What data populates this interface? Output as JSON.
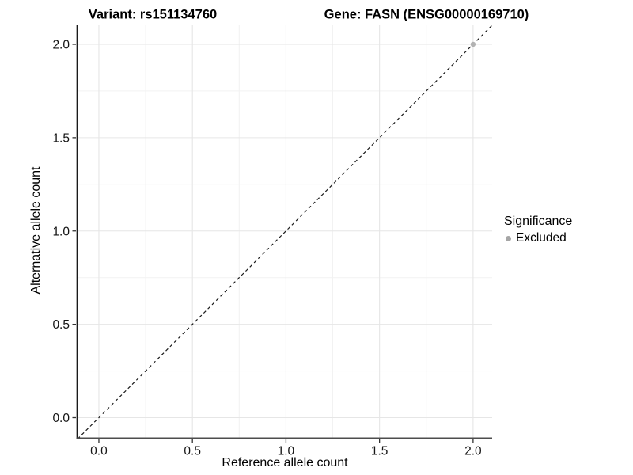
{
  "chart_data": {
    "type": "scatter",
    "title_left": "Variant: rs151134760",
    "title_right": "Gene: FASN (ENSG00000169710)",
    "xlabel": "Reference allele count",
    "ylabel": "Alternative allele count",
    "xlim": [
      -0.114,
      2.102
    ],
    "ylim": [
      -0.106,
      2.106
    ],
    "x_major_ticks": [
      0,
      0.5,
      1,
      1.5,
      2
    ],
    "x_tick_labels": [
      "0.0",
      "0.5",
      "1.0",
      "1.5",
      "2.0"
    ],
    "x_minor_ticks": [
      0.25,
      0.75,
      1.25,
      1.75
    ],
    "y_major_ticks": [
      0,
      0.5,
      1,
      1.5,
      2
    ],
    "y_tick_labels": [
      "0.0",
      "0.5",
      "1.0",
      "1.5",
      "2.0"
    ],
    "y_minor_ticks": [
      0.25,
      0.75,
      1.25,
      1.75
    ],
    "grid": "major+minor",
    "reference_line": {
      "slope": 1,
      "intercept": 0,
      "style": "dashed",
      "color": "#1a1a1a"
    },
    "series": [
      {
        "name": "Excluded",
        "color": "#b2b2b2",
        "points": [
          {
            "x": 2.0,
            "y": 2.0
          }
        ]
      }
    ],
    "legend": {
      "title": "Significance",
      "position": "right",
      "items": [
        {
          "label": "Excluded",
          "color": "#a6a6a6"
        }
      ]
    },
    "colors": {
      "grid_major": "#e6e6e6",
      "grid_minor": "#f2f2f2",
      "axis_line_left": "#1a1a1a",
      "axis_line_bottom": "#4d4d4d",
      "tick": "#333333",
      "panel_bg": "#ffffff"
    }
  }
}
